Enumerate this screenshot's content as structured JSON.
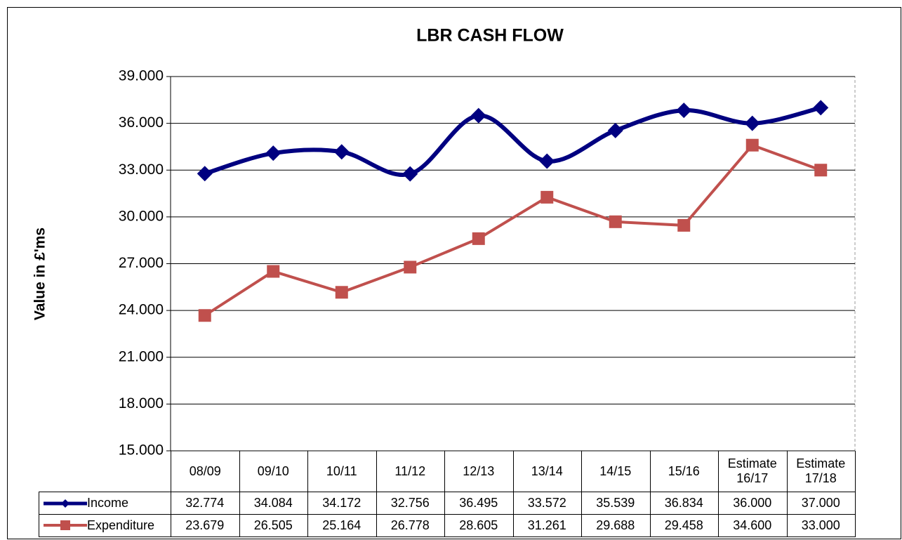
{
  "chart_data": {
    "type": "line",
    "title": "LBR CASH FLOW",
    "y_label": "Value in £'ms",
    "categories": [
      "08/09",
      "09/10",
      "10/11",
      "11/12",
      "12/13",
      "13/14",
      "14/15",
      "15/16",
      "Estimate 16/17",
      "Estimate 17/18"
    ],
    "series": [
      {
        "name": "Income",
        "color": "#000080",
        "smooth": true,
        "marker": "diamond",
        "values": [
          32.774,
          34.084,
          34.172,
          32.756,
          36.495,
          33.572,
          35.539,
          36.834,
          36,
          37
        ],
        "value_labels": [
          "32.774",
          "34.084",
          "34.172",
          "32.756",
          "36.495",
          "33.572",
          "35.539",
          "36.834",
          "36.000",
          "37.000"
        ]
      },
      {
        "name": "Expenditure",
        "color": "#c0504d",
        "smooth": false,
        "marker": "square",
        "values": [
          23.679,
          26.505,
          25.164,
          26.778,
          28.605,
          31.261,
          29.688,
          29.458,
          34.6,
          33
        ],
        "value_labels": [
          "23.679",
          "26.505",
          "25.164",
          "26.778",
          "28.605",
          "31.261",
          "29.688",
          "29.458",
          "34.600",
          "33.000"
        ]
      }
    ],
    "ylim": [
      15,
      39
    ],
    "yticks": [
      {
        "value": 15,
        "label": "15.000"
      },
      {
        "value": 18,
        "label": "18.000"
      },
      {
        "value": 21,
        "label": "21.000"
      },
      {
        "value": 24,
        "label": "24.000"
      },
      {
        "value": 27,
        "label": "27.000"
      },
      {
        "value": 30,
        "label": "30.000"
      },
      {
        "value": 33,
        "label": "33.000"
      },
      {
        "value": 36,
        "label": "36.000"
      },
      {
        "value": 39,
        "label": "39.000"
      }
    ],
    "grid": true
  }
}
